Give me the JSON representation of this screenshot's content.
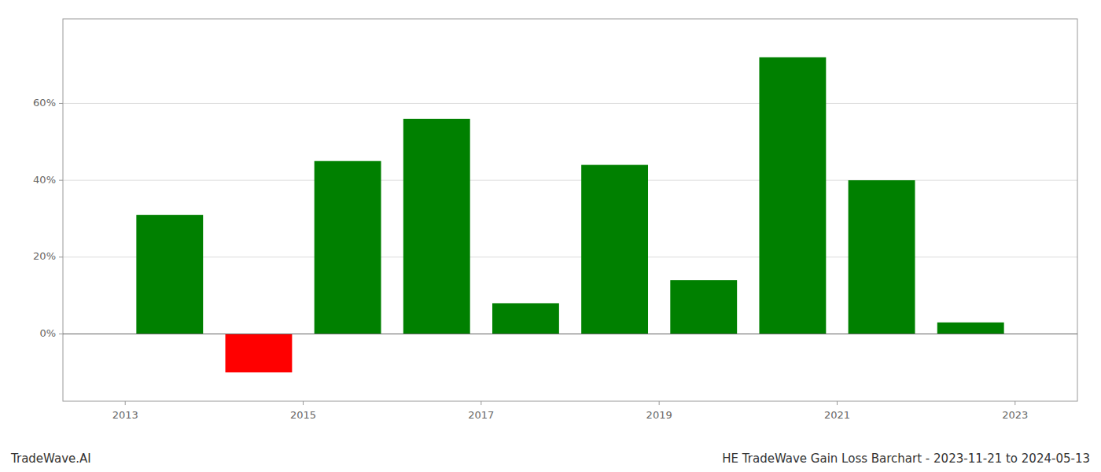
{
  "chart_data": {
    "type": "bar",
    "annotations": [
      "TradeWave.AI",
      "HE TradeWave Gain Loss Barchart - 2023-11-21 to 2024-05-13"
    ],
    "x": [
      2013.5,
      2014.5,
      2015.5,
      2016.5,
      2017.5,
      2018.5,
      2019.5,
      2020.5,
      2021.5,
      2022.5
    ],
    "values": [
      0.31,
      -0.1,
      0.45,
      0.56,
      0.08,
      0.44,
      0.14,
      0.72,
      0.4,
      0.03
    ],
    "colors": [
      "#008000",
      "#ff0000",
      "#008000",
      "#008000",
      "#008000",
      "#008000",
      "#008000",
      "#008000",
      "#008000",
      "#008000"
    ],
    "xlim": [
      2012.3,
      2023.7
    ],
    "ylim": [
      -0.175,
      0.82
    ],
    "xticks": [
      2013,
      2015,
      2017,
      2019,
      2021,
      2023
    ],
    "yticks": [
      {
        "value": 0.0,
        "label": "0%"
      },
      {
        "value": 0.2,
        "label": "20%"
      },
      {
        "value": 0.4,
        "label": "40%"
      },
      {
        "value": 0.6,
        "label": "60%"
      }
    ],
    "grid": true
  }
}
